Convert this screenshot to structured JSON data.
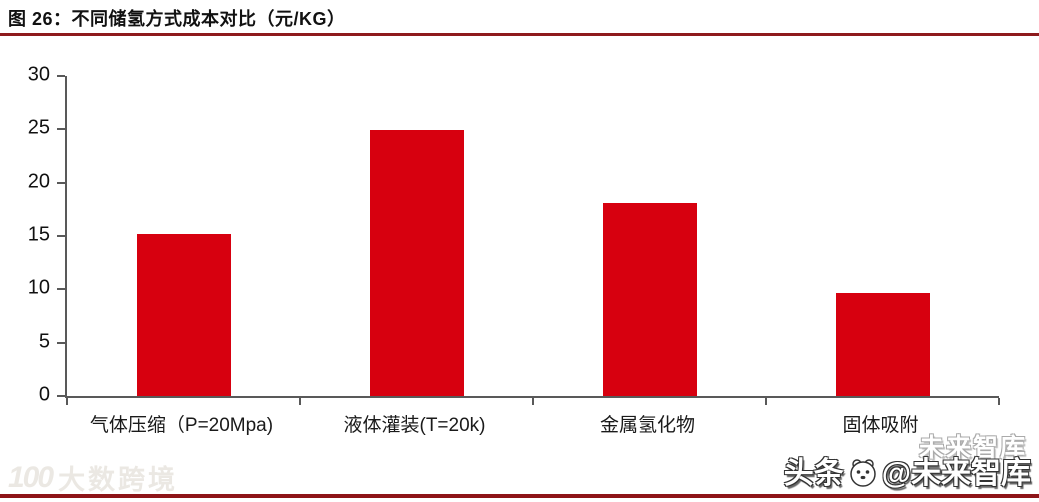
{
  "header": {
    "title": "图 26：不同储氢方式成本对比（元/KG）"
  },
  "chart_data": {
    "type": "bar",
    "title": "图 26：不同储氢方式成本对比（元/KG）",
    "categories": [
      "气体压缩（P=20Mpa)",
      "液体灌装(T=20k)",
      "金属氢化物",
      "固体吸附"
    ],
    "values": [
      15.2,
      24.9,
      18.1,
      9.7
    ],
    "xlabel": "",
    "ylabel": "",
    "unit": "元/KG",
    "ylim": [
      0,
      30
    ],
    "yticks": [
      0,
      5,
      10,
      15,
      20,
      25,
      30
    ],
    "ytick_step": 5,
    "grid": false,
    "legend": "none",
    "bar_color": "#d7000f"
  },
  "watermarks": {
    "left_logo": "100",
    "left_text": "大数跨境",
    "right_prefix": "头条",
    "right_handle": "@未来智库",
    "right_ghost": "未来智库"
  },
  "colors": {
    "accent_red": "#d7000f",
    "rule_maroon": "#8e1a1d",
    "axis_gray": "#595959"
  }
}
